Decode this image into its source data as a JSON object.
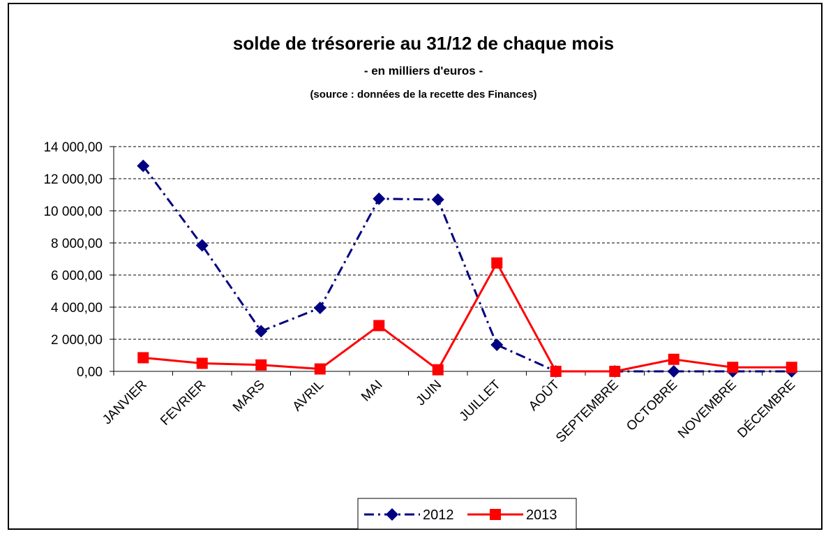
{
  "chart_data": {
    "type": "line",
    "title": "solde de trésorerie au 31/12 de chaque mois",
    "subtitle": "- en milliers d'euros -",
    "source": "(source : données de la recette des Finances)",
    "categories": [
      "JANVIER",
      "FEVRIER",
      "MARS",
      "AVRIL",
      "MAI",
      "JUIN",
      "JUILLET",
      "AOÛT",
      "SEPTEMBRE",
      "OCTOBRE",
      "NOVEMBRE",
      "DÉCEMBRE"
    ],
    "series": [
      {
        "name": "2012",
        "color": "#000080",
        "marker": "diamond",
        "dash": true,
        "values": [
          12800,
          7850,
          2500,
          3950,
          10750,
          10700,
          1650,
          0,
          0,
          0,
          0,
          0
        ]
      },
      {
        "name": "2013",
        "color": "#ff0000",
        "marker": "square",
        "dash": false,
        "values": [
          850,
          500,
          400,
          150,
          2850,
          100,
          6750,
          0,
          0,
          750,
          250,
          250
        ]
      }
    ],
    "ylim": [
      0,
      14000
    ],
    "yticks": [
      {
        "value": 0,
        "label": "0,00"
      },
      {
        "value": 2000,
        "label": "2 000,00"
      },
      {
        "value": 4000,
        "label": "4 000,00"
      },
      {
        "value": 6000,
        "label": "6 000,00"
      },
      {
        "value": 8000,
        "label": "8 000,00"
      },
      {
        "value": 10000,
        "label": "10 000,00"
      },
      {
        "value": 12000,
        "label": "12 000,00"
      },
      {
        "value": 14000,
        "label": "14 000,00"
      }
    ],
    "grid": true,
    "legend": "bottom"
  }
}
